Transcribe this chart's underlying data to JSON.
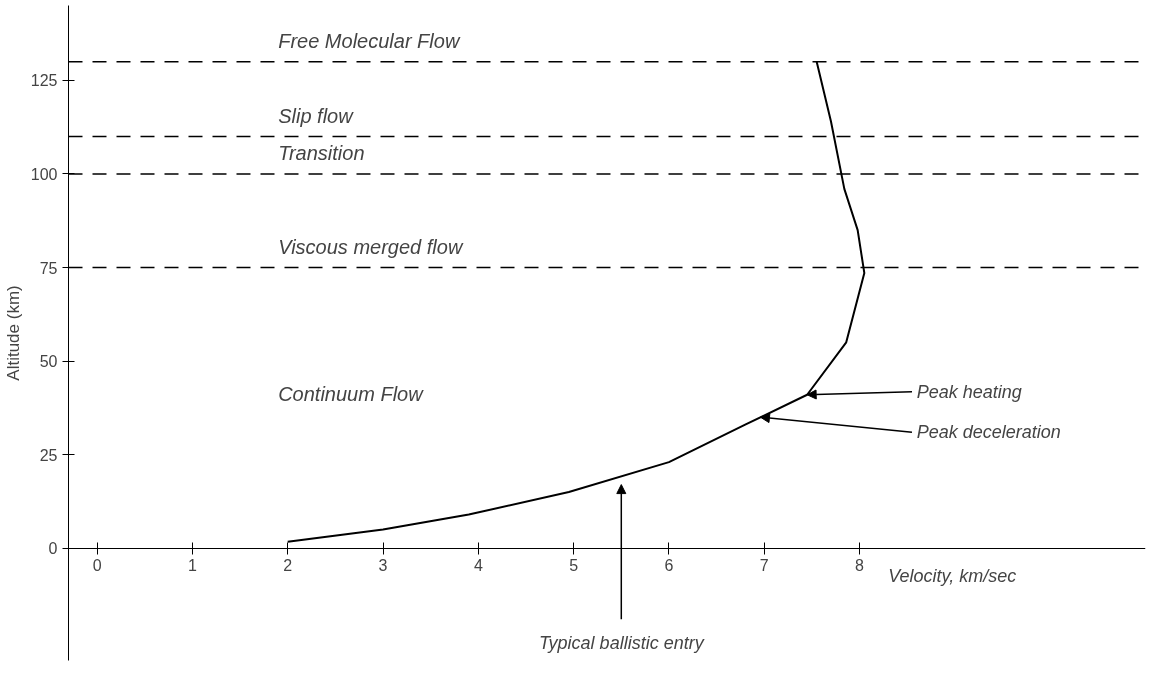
{
  "chart_data": {
    "type": "line",
    "xlabel": "Velocity, km/sec",
    "ylabel": "Altitude (km)",
    "x": [
      2.0,
      3.0,
      3.9,
      4.95,
      6.0,
      6.8,
      7.45,
      7.86,
      8.05,
      7.98,
      7.84,
      7.7,
      7.55
    ],
    "series": [
      {
        "color": "#000000",
        "values": [
          1.7,
          5,
          9,
          15,
          23,
          33,
          41,
          55,
          73.5,
          85,
          96,
          114,
          130
        ]
      }
    ],
    "xlim": [
      -0.3,
      11
    ],
    "ylim": [
      -30,
      145
    ],
    "xticks": [
      0,
      1,
      2,
      3,
      4,
      5,
      6,
      7,
      8
    ],
    "yticks": [
      0,
      25,
      50,
      75,
      100,
      125
    ],
    "grid": false,
    "marker": "none",
    "line_style": "solid",
    "ref_lines": [
      {
        "axis": "y",
        "value": 75,
        "line_style": "dashed",
        "color": "#000000",
        "label": "Viscous merged flow"
      },
      {
        "axis": "y",
        "value": 100,
        "line_style": "dashed",
        "color": "#000000",
        "label": "Transition"
      },
      {
        "axis": "y",
        "value": 110,
        "line_style": "dashed",
        "color": "#000000",
        "label": "Slip flow"
      },
      {
        "axis": "y",
        "value": 130,
        "line_style": "dashed",
        "color": "#000000",
        "label": "Free Molecular Flow"
      }
    ],
    "annotations": [
      "Continuum Flow",
      {
        "text": "Peak heating",
        "x": 7.45,
        "y": 41
      },
      {
        "text": "Peak deceleration",
        "x": 6.96,
        "y": 35
      },
      {
        "text": "Typical ballistic entry",
        "x": 5.5,
        "y": 18
      }
    ]
  }
}
